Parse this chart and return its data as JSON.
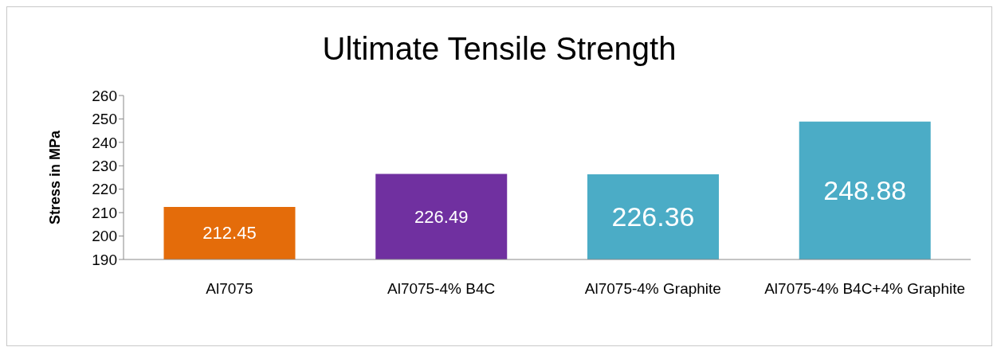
{
  "chart_data": {
    "type": "bar",
    "title": "Ultimate Tensile Strength",
    "ylabel": "Stress in MPa",
    "categories": [
      "Al7075",
      "Al7075-4% B4C",
      "Al7075-4% Graphite",
      "Al7075-4% B4C+4% Graphite"
    ],
    "values": [
      212.45,
      226.49,
      226.36,
      248.88
    ],
    "colors": [
      "#e46c0a",
      "#7030a0",
      "#4bacc6",
      "#4bacc6"
    ],
    "ylim": [
      190,
      260
    ],
    "yticks": [
      190,
      200,
      210,
      220,
      230,
      240,
      250,
      260
    ],
    "data_labels": true,
    "grid": false,
    "legend": false
  }
}
